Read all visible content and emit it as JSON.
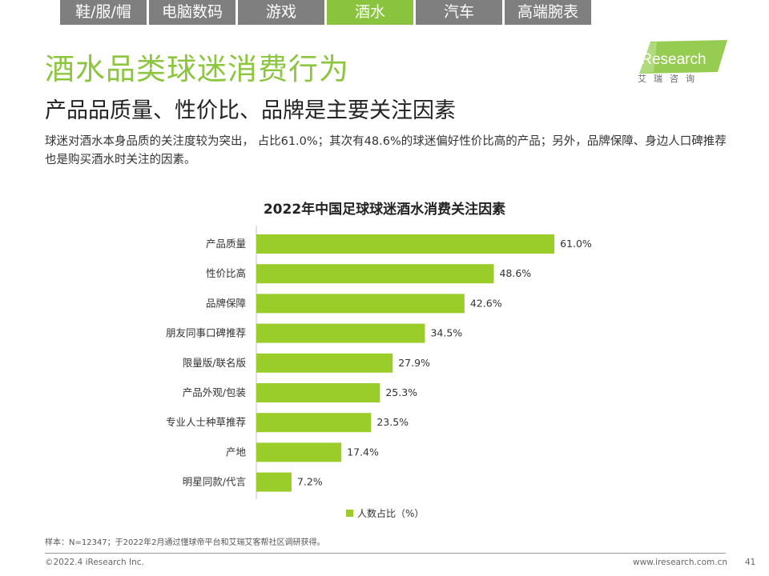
{
  "tabs": [
    {
      "label": "鞋/服/帽",
      "active": false
    },
    {
      "label": "电脑数码",
      "active": false
    },
    {
      "label": "游戏",
      "active": false
    },
    {
      "label": "酒水",
      "active": true
    },
    {
      "label": "汽车",
      "active": false
    },
    {
      "label": "高端腕表",
      "active": false
    }
  ],
  "header": {
    "title": "酒水品类球迷消费行为",
    "subtitle": "产品品质量、性价比、品牌是主要关注因素",
    "description": "球迷对酒水本身品质的关注度较为突出， 占比61.0%；其次有48.6%的球迷偏好性价比高的产品；另外，品牌保障、身边人口碑推荐也是购买酒水时关注的因素。"
  },
  "logo": {
    "brand": "iResearch",
    "cn": "艾瑞咨询",
    "color": "#8cc63f"
  },
  "chart_data": {
    "type": "bar",
    "orientation": "horizontal",
    "title": "2022年中国足球球迷酒水消费关注因素",
    "categories": [
      "产品质量",
      "性价比高",
      "品牌保障",
      "朋友同事口碑推荐",
      "限量版/联名版",
      "产品外观/包装",
      "专业人士种草推荐",
      "产地",
      "明星同款/代言"
    ],
    "series": [
      {
        "name": "人数占比（%）",
        "values": [
          61.0,
          48.6,
          42.6,
          34.5,
          27.9,
          25.3,
          23.5,
          17.4,
          7.2
        ],
        "color": "#9acc2a"
      }
    ],
    "value_suffix": "%",
    "xlim": [
      0,
      100
    ],
    "grid": false,
    "legend_position": "bottom"
  },
  "footer": {
    "note": "样本：N=12347；于2022年2月通过懂球帝平台和艾瑞艾客帮社区调研获得。",
    "copyright": "©2022.4 iResearch Inc.",
    "site": "www.iresearch.com.cn",
    "page": "41"
  }
}
